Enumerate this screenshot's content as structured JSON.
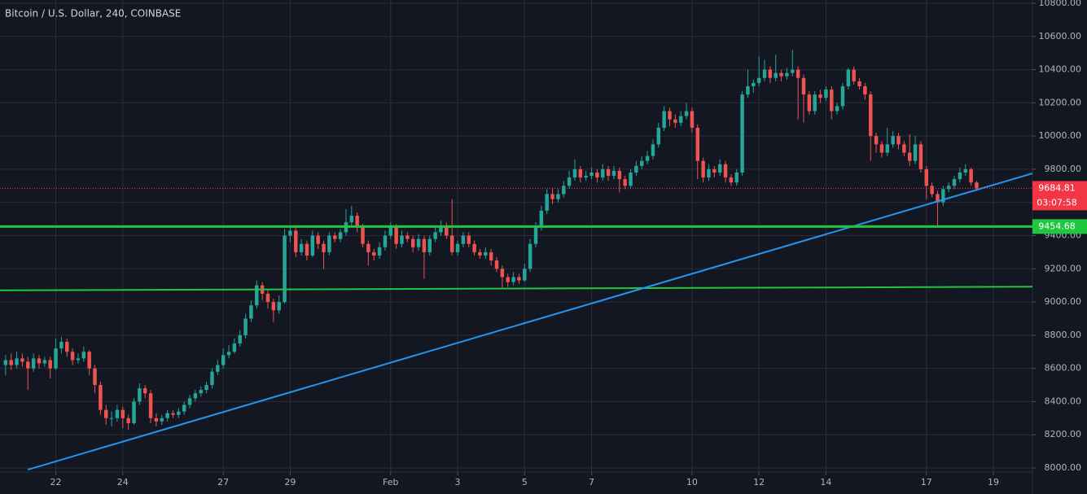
{
  "chart_data": {
    "type": "candlestick",
    "title": "Bitcoin / U.S. Dollar, 240, COINBASE",
    "up_color": "#26a69a",
    "down_color": "#ef5350",
    "grid": true,
    "xlim": [
      -1,
      184
    ],
    "xticks": [
      {
        "value": 9,
        "label": "22"
      },
      {
        "value": 21,
        "label": "24"
      },
      {
        "value": 39,
        "label": "27"
      },
      {
        "value": 51,
        "label": "29"
      },
      {
        "value": 69,
        "label": "Feb"
      },
      {
        "value": 81,
        "label": "3"
      },
      {
        "value": 93,
        "label": "5"
      },
      {
        "value": 105,
        "label": "7"
      },
      {
        "value": 123,
        "label": "10"
      },
      {
        "value": 135,
        "label": "12"
      },
      {
        "value": 147,
        "label": "14"
      },
      {
        "value": 165,
        "label": "17"
      },
      {
        "value": 177,
        "label": "19"
      }
    ],
    "ylim": [
      8000,
      10800
    ],
    "yticks": [
      {
        "value": 8000,
        "label": "8000.00"
      },
      {
        "value": 8200,
        "label": "8200.00"
      },
      {
        "value": 8400,
        "label": "8400.00"
      },
      {
        "value": 8600,
        "label": "8600.00"
      },
      {
        "value": 8800,
        "label": "8800.00"
      },
      {
        "value": 9000,
        "label": "9000.00"
      },
      {
        "value": 9200,
        "label": "9200.00"
      },
      {
        "value": 9400,
        "label": "9400.00"
      },
      {
        "value": 9600,
        "label": "9600.00"
      },
      {
        "value": 9800,
        "label": "9800.00"
      },
      {
        "value": 10000,
        "label": "10000.00"
      },
      {
        "value": 10200,
        "label": "10200.00"
      },
      {
        "value": 10400,
        "label": "10400.00"
      },
      {
        "value": 10600,
        "label": "10600.00"
      },
      {
        "value": 10800,
        "label": "10800.00"
      }
    ],
    "candles": [
      [
        8620,
        8680,
        8560,
        8650
      ],
      [
        8650,
        8690,
        8590,
        8620
      ],
      [
        8620,
        8700,
        8600,
        8660
      ],
      [
        8660,
        8690,
        8610,
        8640
      ],
      [
        8640,
        8670,
        8470,
        8600
      ],
      [
        8600,
        8690,
        8580,
        8660
      ],
      [
        8660,
        8680,
        8600,
        8630
      ],
      [
        8630,
        8670,
        8610,
        8650
      ],
      [
        8650,
        8670,
        8540,
        8600
      ],
      [
        8600,
        8780,
        8590,
        8720
      ],
      [
        8720,
        8790,
        8690,
        8760
      ],
      [
        8760,
        8780,
        8670,
        8700
      ],
      [
        8700,
        8720,
        8620,
        8650
      ],
      [
        8650,
        8690,
        8630,
        8660
      ],
      [
        8660,
        8730,
        8640,
        8700
      ],
      [
        8700,
        8710,
        8560,
        8600
      ],
      [
        8600,
        8620,
        8450,
        8500
      ],
      [
        8500,
        8520,
        8320,
        8350
      ],
      [
        8350,
        8380,
        8260,
        8300
      ],
      [
        8300,
        8340,
        8250,
        8300
      ],
      [
        8300,
        8380,
        8280,
        8350
      ],
      [
        8350,
        8370,
        8240,
        8300
      ],
      [
        8300,
        8320,
        8230,
        8270
      ],
      [
        8270,
        8420,
        8260,
        8400
      ],
      [
        8400,
        8510,
        8380,
        8480
      ],
      [
        8480,
        8500,
        8420,
        8450
      ],
      [
        8450,
        8470,
        8270,
        8300
      ],
      [
        8300,
        8330,
        8250,
        8280
      ],
      [
        8280,
        8320,
        8260,
        8300
      ],
      [
        8300,
        8350,
        8280,
        8330
      ],
      [
        8330,
        8350,
        8300,
        8320
      ],
      [
        8320,
        8360,
        8300,
        8340
      ],
      [
        8340,
        8400,
        8320,
        8380
      ],
      [
        8380,
        8440,
        8360,
        8420
      ],
      [
        8420,
        8470,
        8400,
        8450
      ],
      [
        8450,
        8490,
        8430,
        8470
      ],
      [
        8470,
        8520,
        8450,
        8500
      ],
      [
        8500,
        8600,
        8480,
        8580
      ],
      [
        8580,
        8650,
        8560,
        8620
      ],
      [
        8620,
        8720,
        8600,
        8680
      ],
      [
        8680,
        8740,
        8660,
        8700
      ],
      [
        8700,
        8780,
        8690,
        8750
      ],
      [
        8750,
        8830,
        8730,
        8800
      ],
      [
        8800,
        8930,
        8780,
        8900
      ],
      [
        8900,
        9010,
        8880,
        8980
      ],
      [
        8980,
        9130,
        8960,
        9100
      ],
      [
        9100,
        9120,
        9010,
        9050
      ],
      [
        9050,
        9080,
        8960,
        9000
      ],
      [
        9000,
        9020,
        8880,
        8950
      ],
      [
        8950,
        9040,
        8930,
        9000
      ],
      [
        9000,
        9440,
        8990,
        9400
      ],
      [
        9400,
        9460,
        9360,
        9430
      ],
      [
        9430,
        9450,
        9270,
        9300
      ],
      [
        9300,
        9380,
        9280,
        9350
      ],
      [
        9350,
        9370,
        9250,
        9280
      ],
      [
        9280,
        9430,
        9270,
        9400
      ],
      [
        9400,
        9420,
        9320,
        9350
      ],
      [
        9350,
        9370,
        9200,
        9300
      ],
      [
        9300,
        9420,
        9280,
        9400
      ],
      [
        9400,
        9420,
        9360,
        9380
      ],
      [
        9380,
        9440,
        9360,
        9420
      ],
      [
        9420,
        9560,
        9400,
        9480
      ],
      [
        9480,
        9580,
        9460,
        9520
      ],
      [
        9520,
        9540,
        9420,
        9450
      ],
      [
        9450,
        9470,
        9330,
        9350
      ],
      [
        9350,
        9370,
        9220,
        9300
      ],
      [
        9300,
        9320,
        9250,
        9280
      ],
      [
        9280,
        9360,
        9260,
        9330
      ],
      [
        9330,
        9430,
        9310,
        9400
      ],
      [
        9400,
        9480,
        9380,
        9450
      ],
      [
        9450,
        9470,
        9320,
        9350
      ],
      [
        9350,
        9430,
        9330,
        9400
      ],
      [
        9400,
        9420,
        9360,
        9380
      ],
      [
        9380,
        9400,
        9300,
        9330
      ],
      [
        9330,
        9410,
        9310,
        9380
      ],
      [
        9380,
        9400,
        9140,
        9300
      ],
      [
        9300,
        9400,
        9280,
        9380
      ],
      [
        9380,
        9450,
        9360,
        9420
      ],
      [
        9420,
        9490,
        9400,
        9450
      ],
      [
        9450,
        9480,
        9380,
        9400
      ],
      [
        9400,
        9620,
        9280,
        9300
      ],
      [
        9300,
        9370,
        9280,
        9350
      ],
      [
        9350,
        9420,
        9330,
        9400
      ],
      [
        9400,
        9420,
        9330,
        9350
      ],
      [
        9350,
        9370,
        9280,
        9300
      ],
      [
        9300,
        9320,
        9260,
        9280
      ],
      [
        9280,
        9330,
        9260,
        9300
      ],
      [
        9300,
        9320,
        9220,
        9250
      ],
      [
        9250,
        9270,
        9180,
        9200
      ],
      [
        9200,
        9220,
        9080,
        9150
      ],
      [
        9150,
        9170,
        9090,
        9120
      ],
      [
        9120,
        9180,
        9100,
        9150
      ],
      [
        9150,
        9170,
        9110,
        9130
      ],
      [
        9130,
        9230,
        9120,
        9200
      ],
      [
        9200,
        9380,
        9180,
        9350
      ],
      [
        9350,
        9480,
        9330,
        9450
      ],
      [
        9450,
        9580,
        9430,
        9550
      ],
      [
        9550,
        9680,
        9530,
        9650
      ],
      [
        9650,
        9690,
        9590,
        9620
      ],
      [
        9620,
        9680,
        9600,
        9650
      ],
      [
        9650,
        9730,
        9630,
        9700
      ],
      [
        9700,
        9790,
        9680,
        9750
      ],
      [
        9750,
        9860,
        9730,
        9800
      ],
      [
        9800,
        9820,
        9720,
        9750
      ],
      [
        9750,
        9790,
        9730,
        9760
      ],
      [
        9760,
        9810,
        9740,
        9780
      ],
      [
        9780,
        9800,
        9720,
        9750
      ],
      [
        9750,
        9830,
        9730,
        9800
      ],
      [
        9800,
        9820,
        9730,
        9760
      ],
      [
        9760,
        9820,
        9740,
        9790
      ],
      [
        9790,
        9810,
        9660,
        9740
      ],
      [
        9740,
        9760,
        9680,
        9700
      ],
      [
        9700,
        9800,
        9680,
        9780
      ],
      [
        9780,
        9850,
        9760,
        9820
      ],
      [
        9820,
        9880,
        9800,
        9850
      ],
      [
        9850,
        9910,
        9830,
        9880
      ],
      [
        9880,
        9980,
        9860,
        9950
      ],
      [
        9950,
        10080,
        9930,
        10050
      ],
      [
        10050,
        10180,
        10030,
        10150
      ],
      [
        10150,
        10170,
        10060,
        10100
      ],
      [
        10100,
        10130,
        10050,
        10080
      ],
      [
        10080,
        10150,
        10060,
        10120
      ],
      [
        10120,
        10200,
        10100,
        10150
      ],
      [
        10150,
        10170,
        10020,
        10050
      ],
      [
        10050,
        10070,
        9740,
        9850
      ],
      [
        9850,
        9870,
        9720,
        9750
      ],
      [
        9750,
        9830,
        9730,
        9800
      ],
      [
        9800,
        9820,
        9750,
        9780
      ],
      [
        9780,
        9860,
        9760,
        9830
      ],
      [
        9830,
        9850,
        9720,
        9750
      ],
      [
        9750,
        9770,
        9700,
        9720
      ],
      [
        9720,
        9800,
        9700,
        9780
      ],
      [
        9780,
        10270,
        9760,
        10250
      ],
      [
        10250,
        10400,
        10230,
        10300
      ],
      [
        10300,
        10340,
        10260,
        10320
      ],
      [
        10320,
        10480,
        10300,
        10350
      ],
      [
        10350,
        10460,
        10330,
        10400
      ],
      [
        10400,
        10420,
        10320,
        10350
      ],
      [
        10350,
        10490,
        10330,
        10380
      ],
      [
        10380,
        10400,
        10330,
        10360
      ],
      [
        10360,
        10410,
        10340,
        10380
      ],
      [
        10380,
        10520,
        10360,
        10400
      ],
      [
        10400,
        10420,
        10100,
        10350
      ],
      [
        10350,
        10370,
        10080,
        10250
      ],
      [
        10250,
        10270,
        10130,
        10150
      ],
      [
        10150,
        10270,
        10130,
        10250
      ],
      [
        10250,
        10280,
        10200,
        10230
      ],
      [
        10230,
        10300,
        10210,
        10280
      ],
      [
        10280,
        10300,
        10100,
        10150
      ],
      [
        10150,
        10200,
        10130,
        10180
      ],
      [
        10180,
        10320,
        10160,
        10300
      ],
      [
        10300,
        10410,
        10280,
        10400
      ],
      [
        10400,
        10420,
        10310,
        10330
      ],
      [
        10330,
        10350,
        10280,
        10300
      ],
      [
        10300,
        10320,
        10220,
        10250
      ],
      [
        10250,
        10270,
        9850,
        10000
      ],
      [
        10000,
        10020,
        9900,
        9950
      ],
      [
        9950,
        9970,
        9870,
        9900
      ],
      [
        9900,
        10050,
        9880,
        9950
      ],
      [
        9950,
        10030,
        9930,
        10000
      ],
      [
        10000,
        10020,
        9920,
        9950
      ],
      [
        9950,
        9970,
        9880,
        9900
      ],
      [
        9900,
        10010,
        9820,
        9850
      ],
      [
        9850,
        10000,
        9830,
        9950
      ],
      [
        9950,
        9970,
        9780,
        9800
      ],
      [
        9800,
        9820,
        9620,
        9700
      ],
      [
        9700,
        9720,
        9630,
        9650
      ],
      [
        9650,
        9670,
        9460,
        9600
      ],
      [
        9600,
        9700,
        9580,
        9680
      ],
      [
        9680,
        9720,
        9660,
        9700
      ],
      [
        9700,
        9760,
        9680,
        9740
      ],
      [
        9740,
        9810,
        9720,
        9780
      ],
      [
        9780,
        9830,
        9760,
        9800
      ],
      [
        9800,
        9810,
        9700,
        9720
      ],
      [
        9720,
        9730,
        9670,
        9684.81
      ]
    ],
    "last_price": {
      "value": 9684.81,
      "label": "9684.81",
      "countdown": "03:07:58",
      "color": "#f23645"
    },
    "level": {
      "value": 9454.68,
      "label": "9454.68",
      "color": "#1fc73e"
    },
    "lines": [
      {
        "color": "#1fc73e",
        "x": [
          -1,
          184
        ],
        "y": [
          9070,
          9092
        ]
      },
      {
        "color": "#2196f3",
        "x": [
          4,
          184
        ],
        "y": [
          7990,
          9775
        ]
      }
    ]
  }
}
